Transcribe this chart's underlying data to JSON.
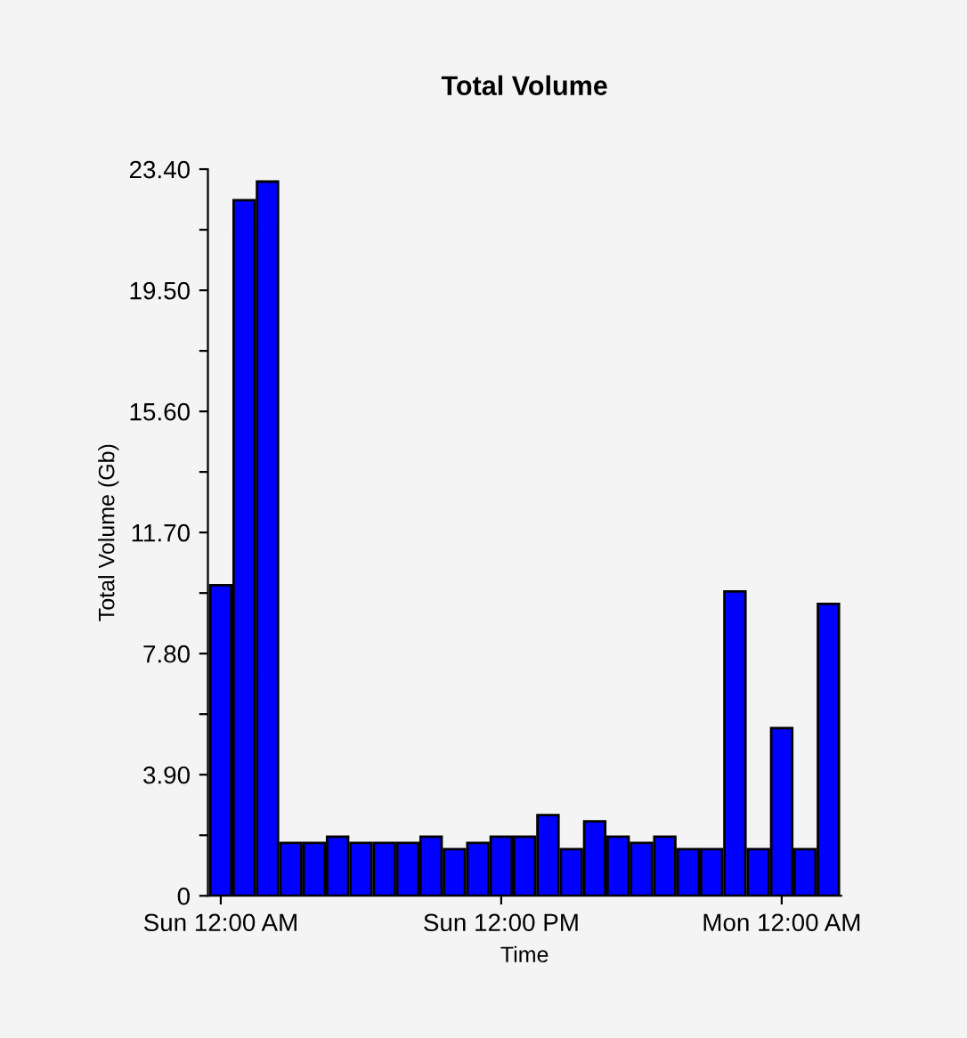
{
  "chart_data": {
    "type": "bar",
    "title": "Total Volume",
    "xlabel": "Time",
    "ylabel": "Total Volume (Gb)",
    "categories": [
      "Sun 12:00 AM",
      null,
      null,
      null,
      null,
      null,
      null,
      null,
      null,
      null,
      null,
      null,
      "Sun 12:00 PM",
      null,
      null,
      null,
      null,
      null,
      null,
      null,
      null,
      null,
      null,
      null,
      "Mon 12:00 AM",
      null,
      null
    ],
    "values": [
      10.0,
      22.4,
      23.0,
      1.7,
      1.7,
      1.9,
      1.7,
      1.7,
      1.7,
      1.9,
      1.5,
      1.7,
      1.9,
      1.9,
      2.6,
      1.5,
      2.4,
      1.9,
      1.7,
      1.9,
      1.5,
      1.5,
      9.8,
      1.5,
      5.4,
      1.5,
      9.4
    ],
    "color": "#0000ff",
    "ylim": [
      0,
      23.4
    ],
    "yticks": [
      0,
      {
        "value": 1.95,
        "label": null
      },
      {
        "value": 3.9,
        "label": "3.90"
      },
      {
        "value": 5.85,
        "label": null
      },
      {
        "value": 7.8,
        "label": "7.80"
      },
      {
        "value": 9.75,
        "label": null
      },
      {
        "value": 11.7,
        "label": "11.70"
      },
      {
        "value": 13.65,
        "label": null
      },
      {
        "value": 15.6,
        "label": "15.60"
      },
      {
        "value": 17.55,
        "label": null
      },
      {
        "value": 19.5,
        "label": "19.50"
      },
      {
        "value": 21.45,
        "label": null
      },
      {
        "value": 23.4,
        "label": "23.40"
      }
    ],
    "grid": false
  }
}
